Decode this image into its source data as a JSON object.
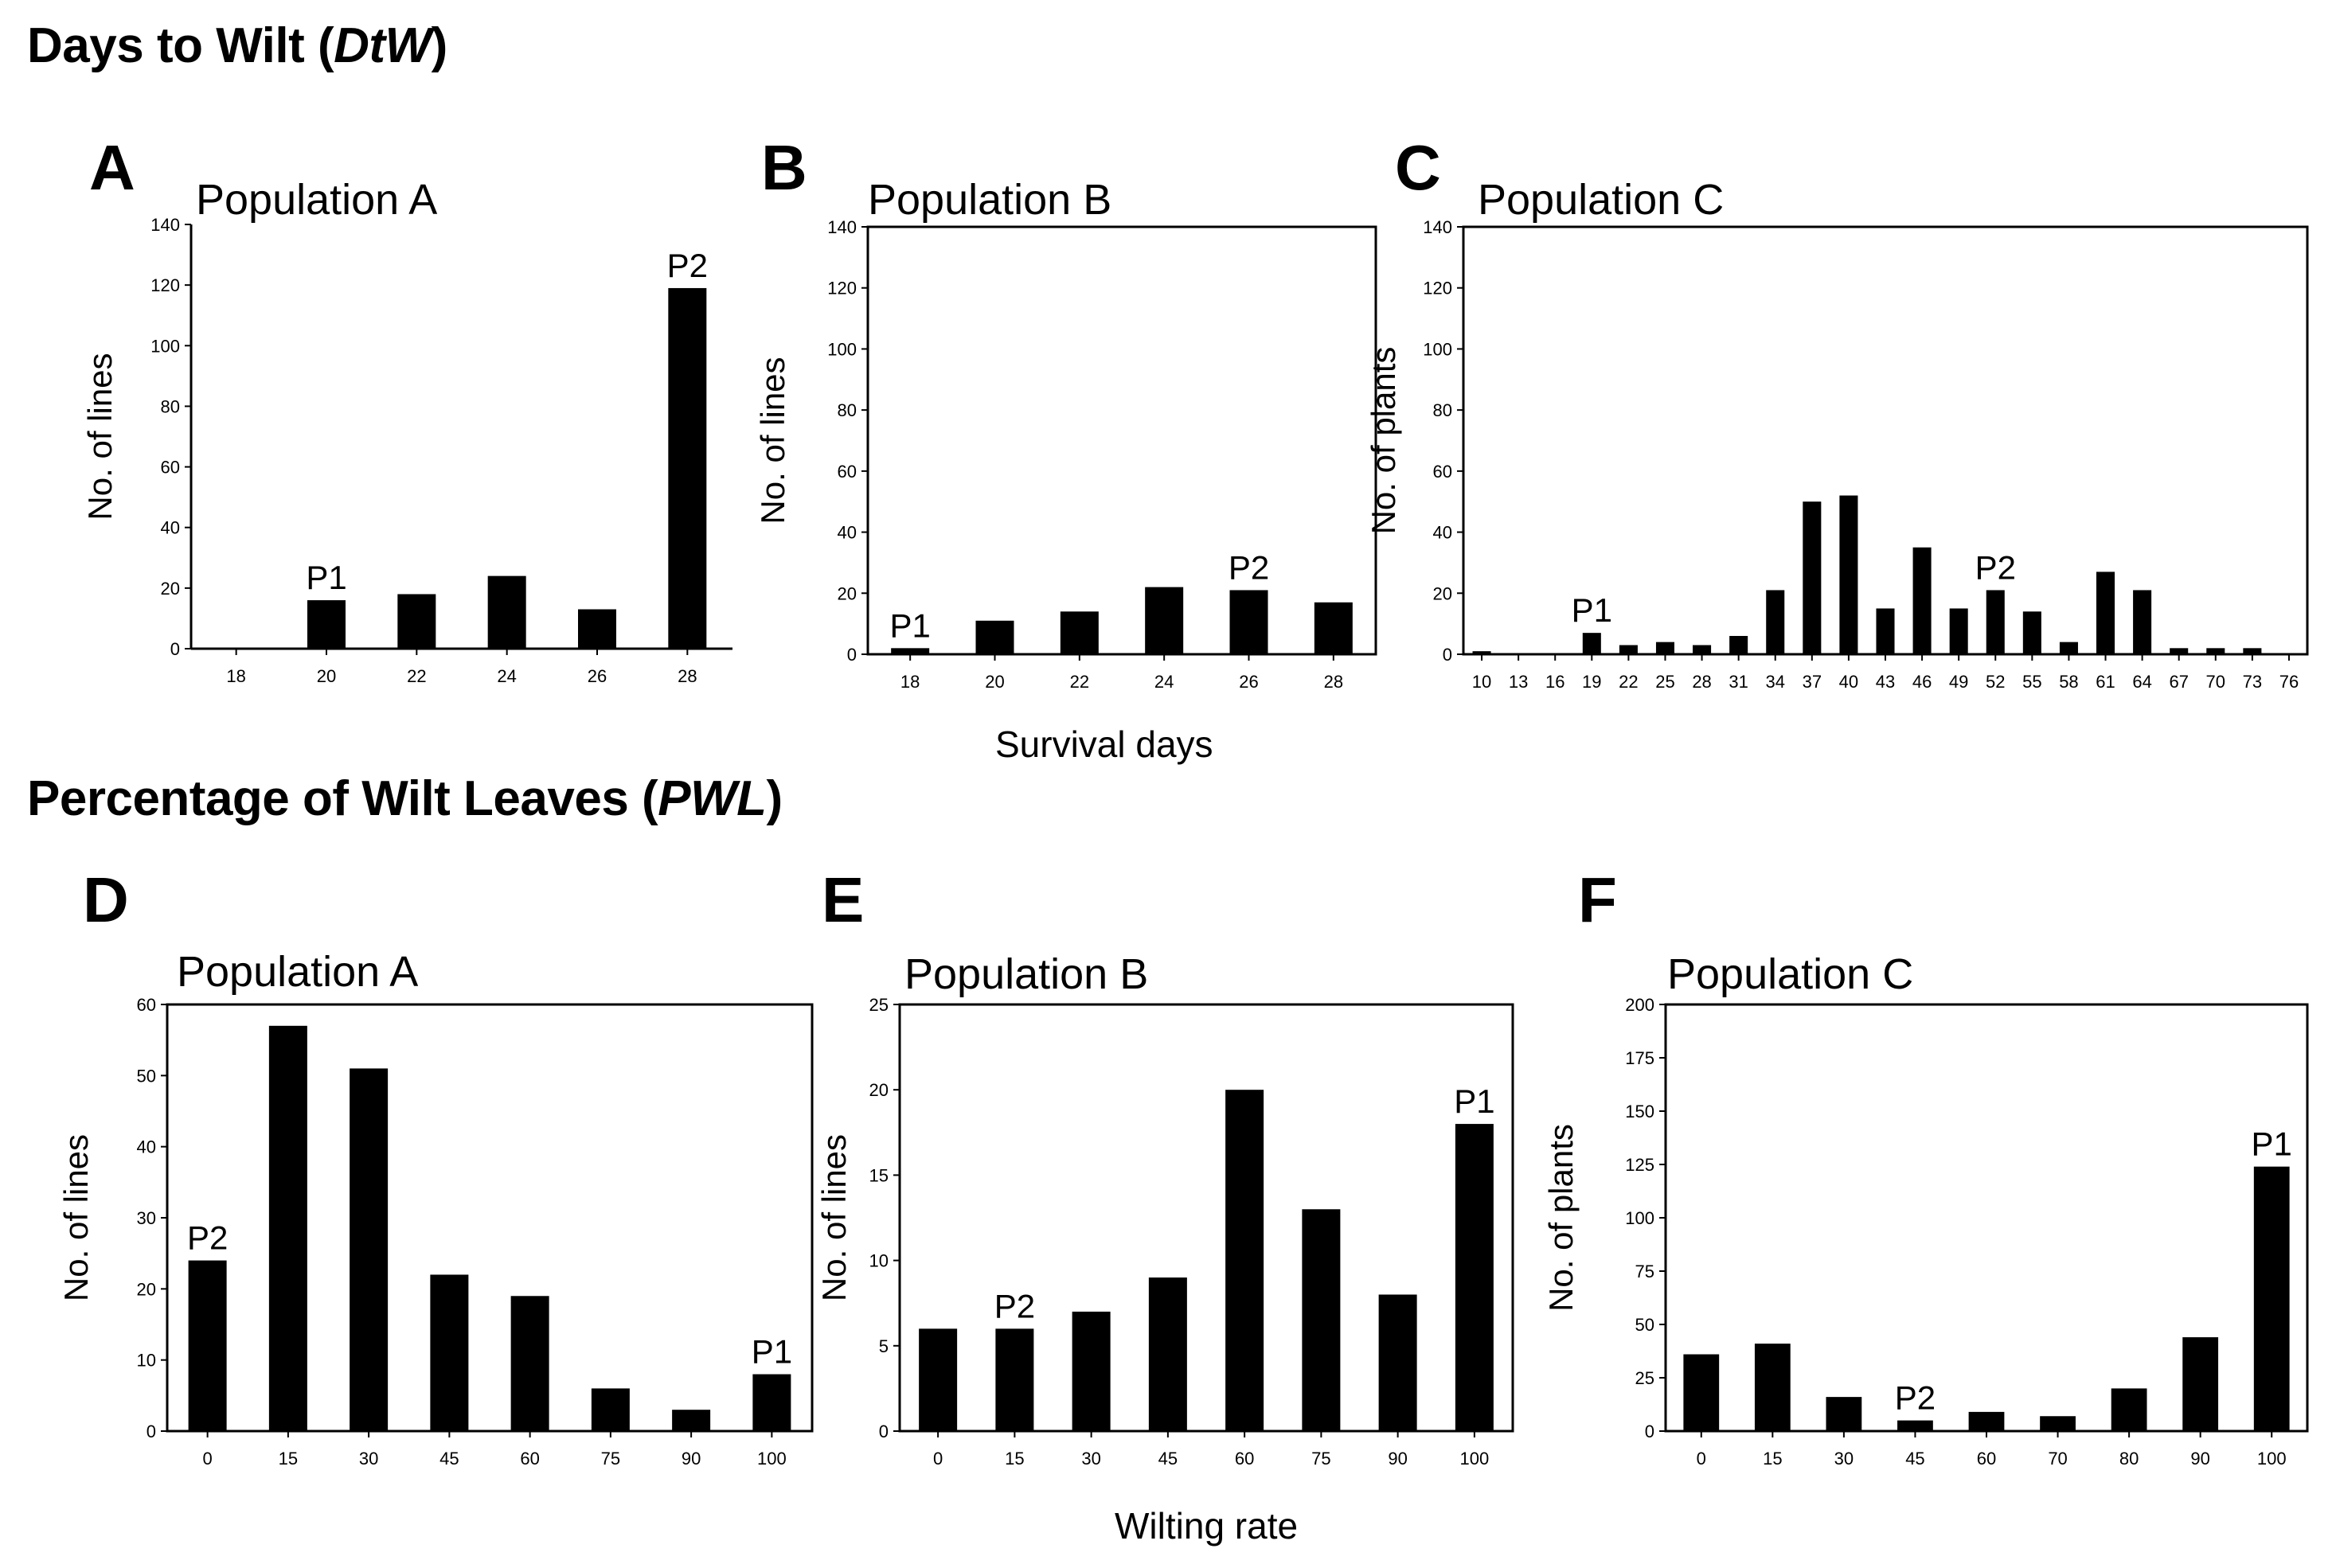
{
  "sections": {
    "dtw": {
      "title": "Days to Wilt (",
      "abbr": "DtW",
      "close": ")",
      "xlabel": "Survival days"
    },
    "pwl": {
      "title": "Percentage of Wilt Leaves (",
      "abbr": "PWL",
      "close": ")",
      "xlabel": "Wilting rate"
    }
  },
  "chart_data": [
    {
      "id": "A",
      "type": "bar",
      "title": "Population A",
      "ylabel": "No. of lines",
      "ylim": [
        0,
        140
      ],
      "yticks": [
        0,
        20,
        40,
        60,
        80,
        100,
        120,
        140
      ],
      "categories": [
        "18",
        "20",
        "22",
        "24",
        "26",
        "28"
      ],
      "values": [
        0,
        16,
        18,
        24,
        13,
        119
      ],
      "annotations": [
        {
          "text": "P1",
          "category": "20"
        },
        {
          "text": "P2",
          "category": "28"
        }
      ]
    },
    {
      "id": "B",
      "type": "bar",
      "title": "Population B",
      "ylabel": "No. of lines",
      "ylim": [
        0,
        140
      ],
      "yticks": [
        0,
        20,
        40,
        60,
        80,
        100,
        120,
        140
      ],
      "categories": [
        "18",
        "20",
        "22",
        "24",
        "26",
        "28"
      ],
      "values": [
        2,
        11,
        14,
        22,
        21,
        17
      ],
      "annotations": [
        {
          "text": "P1",
          "category": "18"
        },
        {
          "text": "P2",
          "category": "26"
        }
      ]
    },
    {
      "id": "C",
      "type": "bar",
      "title": "Population C",
      "ylabel": "No. of plants",
      "ylim": [
        0,
        140
      ],
      "yticks": [
        0,
        20,
        40,
        60,
        80,
        100,
        120,
        140
      ],
      "categories": [
        "10",
        "13",
        "16",
        "19",
        "22",
        "25",
        "28",
        "31",
        "34",
        "37",
        "40",
        "43",
        "46",
        "49",
        "52",
        "55",
        "58",
        "61",
        "64",
        "67",
        "70",
        "73",
        "76"
      ],
      "values": [
        1,
        0,
        0,
        7,
        3,
        4,
        3,
        6,
        21,
        50,
        52,
        15,
        35,
        15,
        21,
        14,
        4,
        27,
        21,
        2,
        2,
        2,
        0
      ],
      "annotations": [
        {
          "text": "P1",
          "category": "19"
        },
        {
          "text": "P2",
          "category": "52"
        }
      ]
    },
    {
      "id": "D",
      "type": "bar",
      "title": "Population A",
      "ylabel": "No. of lines",
      "ylim": [
        0,
        60
      ],
      "yticks": [
        0,
        10,
        20,
        30,
        40,
        50,
        60
      ],
      "categories": [
        "0",
        "15",
        "30",
        "45",
        "60",
        "75",
        "90",
        "100"
      ],
      "values": [
        24,
        57,
        51,
        22,
        19,
        6,
        3,
        8
      ],
      "annotations": [
        {
          "text": "P2",
          "category": "0"
        },
        {
          "text": "P1",
          "category": "100"
        }
      ]
    },
    {
      "id": "E",
      "type": "bar",
      "title": "Population B",
      "ylabel": "No. of lines",
      "ylim": [
        0,
        25
      ],
      "yticks": [
        0,
        5,
        10,
        15,
        20,
        25
      ],
      "categories": [
        "0",
        "15",
        "30",
        "45",
        "60",
        "75",
        "90",
        "100"
      ],
      "values": [
        6,
        6,
        7,
        9,
        20,
        13,
        8,
        18
      ],
      "annotations": [
        {
          "text": "P2",
          "category": "15"
        },
        {
          "text": "P1",
          "category": "100"
        }
      ]
    },
    {
      "id": "F",
      "type": "bar",
      "title": "Population C",
      "ylabel": "No. of plants",
      "ylim": [
        0,
        200
      ],
      "yticks": [
        0,
        25,
        50,
        75,
        100,
        125,
        150,
        175,
        200
      ],
      "categories": [
        "0",
        "15",
        "30",
        "45",
        "60",
        "70",
        "80",
        "90",
        "100"
      ],
      "values": [
        36,
        41,
        16,
        5,
        9,
        7,
        20,
        44,
        124
      ],
      "annotations": [
        {
          "text": "P2",
          "category": "45"
        },
        {
          "text": "P1",
          "category": "100"
        }
      ]
    }
  ]
}
